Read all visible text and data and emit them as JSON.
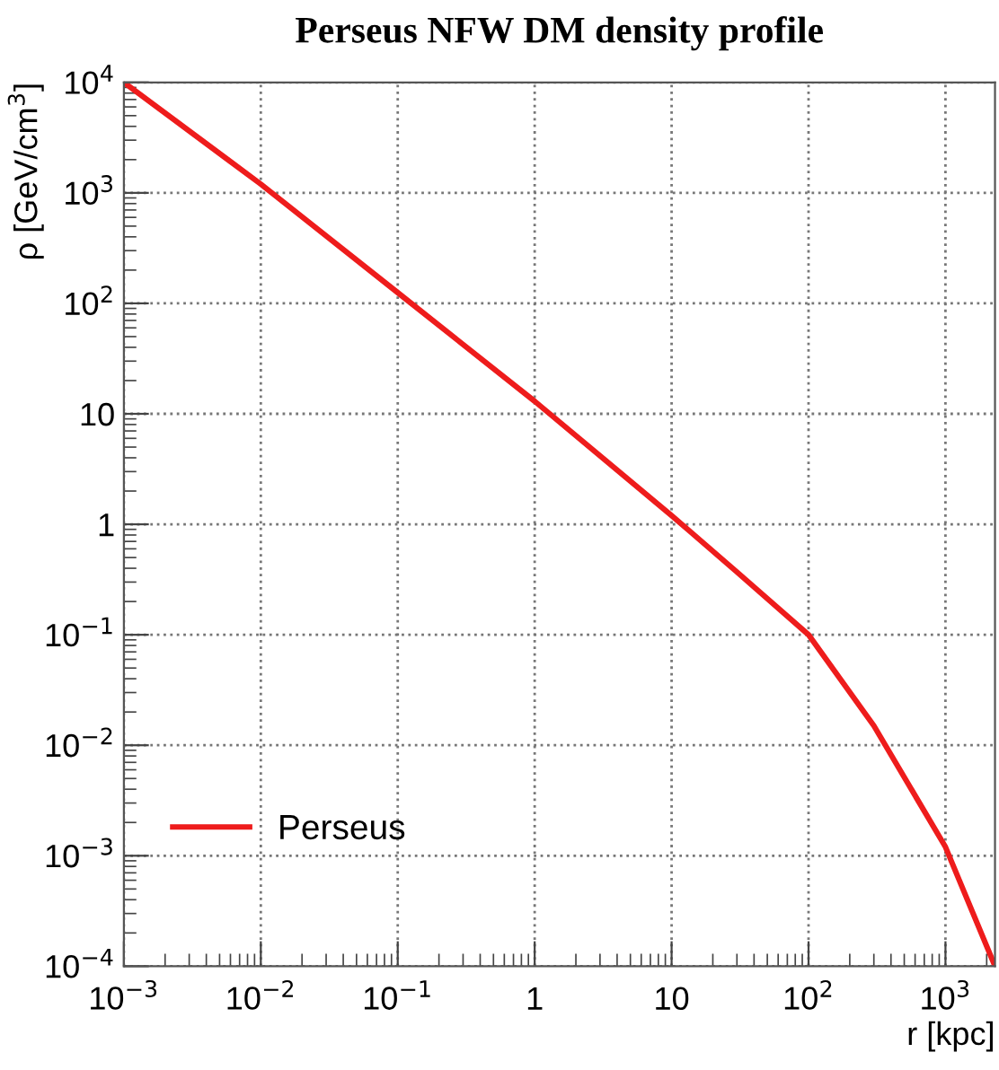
{
  "chart_data": {
    "type": "line",
    "title": "Perseus NFW DM density profile",
    "xlabel": "r [kpc]",
    "ylabel": "ρ [GeV/cm$^{3}$]",
    "x": [
      0.001,
      0.01,
      0.1,
      1,
      10,
      30,
      100,
      300,
      1000,
      2300
    ],
    "series": [
      {
        "name": "Perseus",
        "color": "#ee1c1c",
        "values": [
          10000,
          1200,
          125,
          13,
          1.2,
          0.37,
          0.1,
          0.015,
          0.0012,
          0.0001
        ]
      }
    ],
    "log": "xy",
    "xlim": [
      0.001,
      2300
    ],
    "ylim": [
      0.0001,
      10000
    ],
    "xticks": [
      {
        "value": 0.001,
        "label": "10$^{−3}$"
      },
      {
        "value": 0.01,
        "label": "10$^{−2}$"
      },
      {
        "value": 0.1,
        "label": "10$^{−1}$"
      },
      1,
      10,
      {
        "value": 100,
        "label": "10$^{2}$"
      },
      {
        "value": 1000,
        "label": "10$^{3}$"
      }
    ],
    "yticks": [
      {
        "value": 0.0001,
        "label": "10$^{−4}$"
      },
      {
        "value": 0.001,
        "label": "10$^{−3}$"
      },
      {
        "value": 0.01,
        "label": "10$^{−2}$"
      },
      {
        "value": 0.1,
        "label": "10$^{−1}$"
      },
      1,
      10,
      {
        "value": 100,
        "label": "10$^{2}$"
      },
      {
        "value": 1000,
        "label": "10$^{3}$"
      },
      {
        "value": 10000,
        "label": "10$^{4}$"
      }
    ],
    "grid": true,
    "legend": "bottom left",
    "line_style": "solid",
    "marker": "none"
  }
}
